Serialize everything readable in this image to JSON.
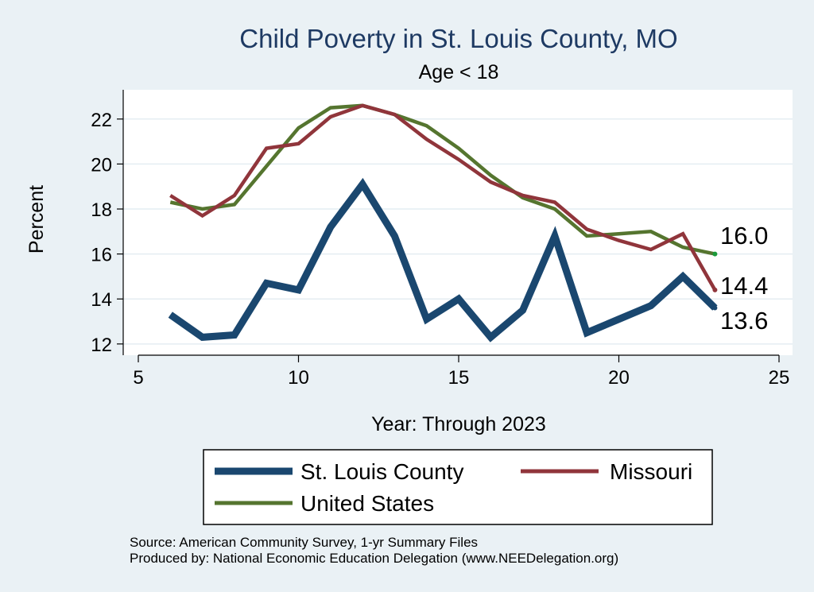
{
  "chart_data": {
    "type": "line",
    "title": "Child Poverty in St. Louis County, MO",
    "subtitle": "Age < 18",
    "xlabel": "Year: Through 2023",
    "ylabel": "Percent",
    "xlim": [
      5,
      25
    ],
    "ylim": [
      11.5,
      23.3
    ],
    "xticks": [
      5,
      10,
      15,
      20,
      25
    ],
    "yticks": [
      12,
      14,
      16,
      18,
      20,
      22
    ],
    "grid": true,
    "legend_position": "bottom",
    "x": [
      6,
      7,
      8,
      9,
      10,
      11,
      12,
      13,
      14,
      15,
      16,
      17,
      18,
      19,
      20,
      21,
      22,
      23
    ],
    "series": [
      {
        "name": "St. Louis County",
        "color": "#1a476f",
        "values": [
          13.3,
          12.3,
          12.4,
          14.7,
          14.4,
          17.2,
          19.1,
          16.8,
          13.1,
          14.0,
          12.3,
          13.5,
          16.8,
          12.5,
          13.1,
          13.7,
          15.0,
          13.6
        ]
      },
      {
        "name": "Missouri",
        "color": "#90353b",
        "values": [
          18.6,
          17.7,
          18.6,
          20.7,
          20.9,
          22.1,
          22.6,
          22.2,
          21.1,
          20.2,
          19.2,
          18.6,
          18.3,
          17.1,
          16.6,
          16.2,
          16.9,
          14.4
        ]
      },
      {
        "name": "United States",
        "color": "#55752f",
        "values": [
          18.3,
          18.0,
          18.2,
          19.9,
          21.6,
          22.5,
          22.6,
          22.2,
          21.7,
          20.7,
          19.5,
          18.5,
          18.0,
          16.8,
          16.9,
          17.0,
          16.3,
          16.0
        ]
      }
    ],
    "end_labels": [
      {
        "series": "United States",
        "text": "16.0"
      },
      {
        "series": "Missouri",
        "text": "14.4"
      },
      {
        "series": "St. Louis County",
        "text": "13.6"
      }
    ],
    "notes": [
      "Source: American Community Survey, 1-yr Summary Files",
      "Produced by: National Economic Education Delegation (www.NEEDelegation.org)"
    ]
  }
}
